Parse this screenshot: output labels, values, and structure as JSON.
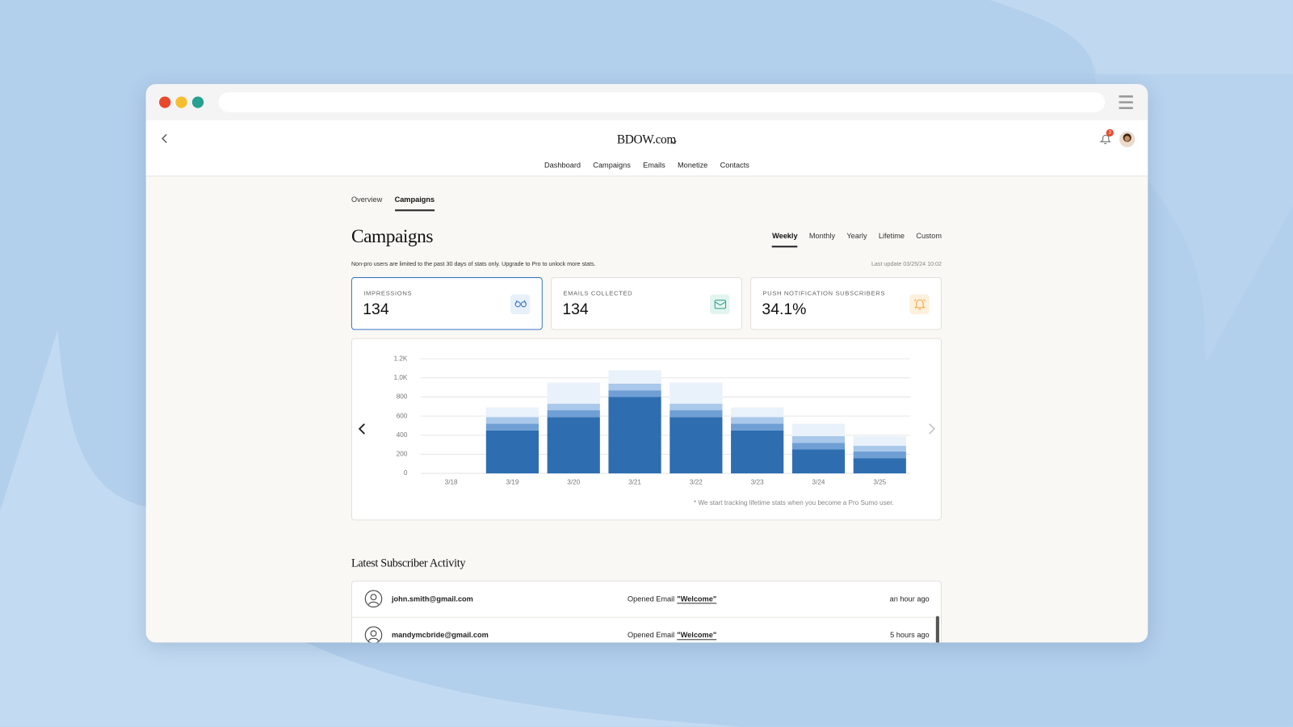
{
  "header": {
    "site": "BDOW.com",
    "notification_badge": "3",
    "nav": [
      "Dashboard",
      "Campaigns",
      "Emails",
      "Monetize",
      "Contacts"
    ]
  },
  "tabs": [
    "Overview",
    "Campaigns"
  ],
  "active_tab": 1,
  "page": {
    "title": "Campaigns",
    "periods": [
      "Weekly",
      "Monthly",
      "Yearly",
      "Lifetime",
      "Custom"
    ],
    "active_period": 0,
    "notice": "Non-pro users are limited to the past 30 days of stats only. Upgrade to Pro to unlock more stats.",
    "last_update": "Last update 03/25/24 10:02"
  },
  "stats": [
    {
      "label": "IMPRESSIONS",
      "value": "134"
    },
    {
      "label": "EMAILS COLLECTED",
      "value": "134"
    },
    {
      "label": "PUSH NOTIFICATION SUBSCRIBERS",
      "value": "34.1%"
    }
  ],
  "chart_data": {
    "type": "stacked-bar",
    "categories": [
      "3/18",
      "3/19",
      "3/20",
      "3/21",
      "3/22",
      "3/23",
      "3/24",
      "3/25"
    ],
    "series": [
      {
        "color": "#2e6eb0",
        "values": [
          0,
          450,
          590,
          800,
          590,
          450,
          250,
          160
        ]
      },
      {
        "color": "#6f9fd4",
        "values": [
          0,
          70,
          70,
          70,
          70,
          70,
          70,
          70
        ]
      },
      {
        "color": "#a9c8ea",
        "values": [
          0,
          70,
          70,
          70,
          70,
          70,
          70,
          60
        ]
      },
      {
        "color": "#e9f1fa",
        "values": [
          0,
          100,
          220,
          140,
          220,
          100,
          130,
          100
        ]
      }
    ],
    "ylim": [
      0,
      1200
    ],
    "yticks": [
      0,
      200,
      400,
      600,
      800,
      {
        "value": 1000,
        "label": "1.0K"
      },
      {
        "value": 1200,
        "label": "1.2K"
      }
    ],
    "grid": true,
    "footnote": "* We start tracking lifetime stats when you become a Pro Sumo user."
  },
  "activity": {
    "title": "Latest Subscriber Activity",
    "rows": [
      {
        "email": "john.smith@gmail.com",
        "action": "Opened Email",
        "item": "\"Welcome\"",
        "time": "an hour ago"
      },
      {
        "email": "mandymcbride@gmail.com",
        "action": "Opened Email",
        "item": "\"Welcome\"",
        "time": "5 hours ago"
      }
    ]
  }
}
